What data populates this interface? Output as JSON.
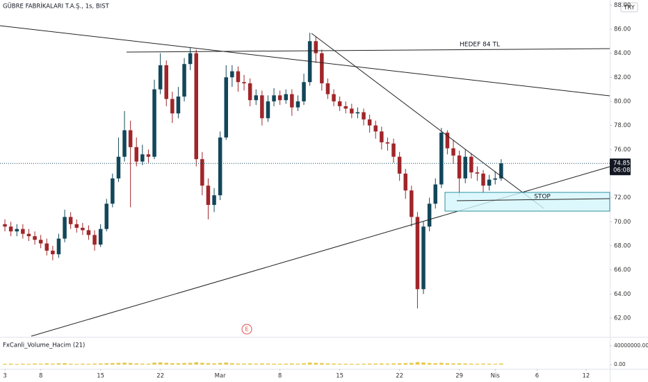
{
  "chart_data": {
    "type": "candlestick",
    "title": "GÜBRE FABRİKALARI T.A.Ş., 1s, BIST",
    "currency_button": "TRY",
    "countdown": "06:08",
    "earnings_marker": "E",
    "annotations": [
      "HEDEF 84 TL",
      "STOP"
    ],
    "up_color": "#12475a",
    "down_color": "#a0262a",
    "grid": false,
    "xlim": [
      -0.41,
      50.58
    ],
    "xticks": [
      {
        "value": 0,
        "label": "3"
      },
      {
        "value": 3,
        "label": "8"
      },
      {
        "value": 8,
        "label": "15"
      },
      {
        "value": 13,
        "label": "22"
      },
      {
        "value": 18,
        "label": "Mar"
      },
      {
        "value": 23,
        "label": "8"
      },
      {
        "value": 28,
        "label": "15"
      },
      {
        "value": 33,
        "label": "22"
      },
      {
        "value": 38,
        "label": "29"
      },
      {
        "value": 41,
        "label": "Nis"
      },
      {
        "value": 44.5,
        "label": "6"
      },
      {
        "value": 48.6,
        "label": "12"
      }
    ],
    "ylim": [
      60.44,
      88.42
    ],
    "yticks": [
      {
        "value": 62,
        "label": "62.00"
      },
      {
        "value": 64,
        "label": "64.00"
      },
      {
        "value": 66,
        "label": "66.00"
      },
      {
        "value": 68,
        "label": "68.00"
      },
      {
        "value": 70,
        "label": "70.00"
      },
      {
        "value": 72,
        "label": "72.00"
      },
      {
        "value": 76,
        "label": "76.00"
      },
      {
        "value": 78,
        "label": "78.00"
      },
      {
        "value": 80,
        "label": "80.00"
      },
      {
        "value": 82,
        "label": "82.00"
      },
      {
        "value": 84,
        "label": "84.00"
      },
      {
        "value": 86,
        "label": "86.00"
      },
      {
        "value": 88,
        "label": "88.00"
      }
    ],
    "x": [
      0,
      0.5,
      1,
      1.5,
      2,
      2.5,
      3,
      3.5,
      4,
      4.5,
      5,
      5.5,
      6,
      6.5,
      7,
      7.5,
      8,
      8.5,
      9,
      9.5,
      10,
      10.5,
      11,
      11.5,
      12,
      12.5,
      13,
      13.5,
      14,
      14.5,
      15,
      15.5,
      16,
      16.5,
      17,
      17.5,
      18,
      18.5,
      19,
      19.5,
      20,
      20.5,
      21,
      21.5,
      22,
      22.5,
      23,
      23.5,
      24,
      24.5,
      25,
      25.5,
      26,
      26.5,
      27,
      27.5,
      28,
      28.5,
      29,
      29.5,
      30,
      30.5,
      31,
      31.5,
      32,
      32.5,
      33,
      33.5,
      34,
      34.5,
      35,
      35.5,
      36,
      36.5,
      37,
      37.5,
      38,
      38.5,
      39,
      39.5,
      40,
      40.5,
      41,
      41.5
    ],
    "open": [
      69.8,
      69.6,
      69.2,
      69.4,
      69.0,
      68.8,
      68.5,
      68.2,
      67.6,
      67.3,
      68.6,
      70.4,
      69.8,
      69.5,
      69.3,
      68.9,
      68.1,
      69.4,
      71.5,
      73.6,
      75.4,
      77.6,
      76.2,
      75.0,
      75.6,
      75.4,
      81.0,
      83.0,
      80.2,
      79.0,
      80.4,
      83.1,
      84.0,
      75.2,
      73.0,
      71.4,
      72.2,
      77.0,
      82.0,
      82.5,
      81.6,
      81.5,
      80.1,
      80.5,
      78.6,
      80.0,
      80.5,
      80.1,
      80.6,
      79.5,
      80.0,
      81.6,
      85.0,
      84.0,
      81.5,
      80.6,
      80.0,
      79.6,
      79.4,
      79.0,
      79.1,
      78.5,
      78.0,
      77.5,
      76.6,
      76.5,
      75.4,
      74.0,
      72.6,
      70.4,
      64.4,
      69.6,
      71.5,
      73.1,
      77.4,
      76.1,
      75.5,
      73.6,
      75.4,
      74.1,
      74.0,
      73.0,
      73.5,
      73.6
    ],
    "high": [
      70.2,
      70.0,
      69.8,
      69.8,
      69.4,
      69.2,
      68.9,
      68.6,
      68.0,
      69.0,
      71.0,
      70.8,
      70.2,
      69.9,
      69.7,
      69.3,
      69.8,
      71.9,
      74.0,
      77.0,
      79.2,
      78.4,
      77.0,
      76.4,
      76.0,
      81.8,
      84.0,
      83.4,
      80.8,
      81.2,
      83.6,
      84.5,
      84.3,
      75.8,
      73.6,
      72.8,
      77.5,
      83.0,
      83.0,
      82.9,
      82.2,
      81.9,
      81.0,
      80.9,
      80.5,
      81.1,
      80.9,
      81.0,
      81.0,
      80.5,
      82.3,
      85.7,
      85.4,
      84.3,
      81.9,
      81.0,
      80.4,
      80.0,
      79.8,
      79.5,
      79.4,
      78.9,
      78.4,
      77.9,
      77.0,
      76.9,
      75.8,
      74.4,
      73.0,
      70.8,
      70.0,
      72.0,
      73.6,
      77.8,
      77.6,
      76.8,
      75.9,
      76.0,
      75.7,
      74.6,
      74.3,
      73.9,
      74.2,
      75.2
    ],
    "low": [
      69.2,
      68.8,
      68.8,
      68.6,
      68.4,
      68.1,
      67.8,
      67.2,
      66.8,
      67.0,
      68.3,
      69.4,
      69.1,
      68.9,
      68.5,
      67.6,
      67.9,
      69.2,
      71.2,
      73.3,
      75.0,
      71.2,
      74.6,
      74.7,
      74.9,
      75.2,
      80.6,
      79.6,
      78.2,
      78.6,
      80.0,
      82.6,
      74.6,
      72.2,
      70.2,
      70.8,
      71.8,
      76.8,
      81.2,
      80.8,
      80.9,
      79.6,
      79.7,
      78.0,
      78.3,
      79.6,
      79.7,
      79.8,
      78.8,
      79.2,
      79.7,
      81.3,
      83.2,
      80.9,
      80.2,
      79.6,
      79.2,
      79.0,
      78.6,
      78.6,
      78.0,
      77.4,
      76.9,
      76.0,
      75.9,
      74.9,
      73.4,
      71.9,
      69.6,
      62.8,
      64.0,
      69.2,
      71.1,
      72.8,
      75.6,
      74.8,
      72.1,
      73.2,
      73.6,
      73.4,
      72.4,
      72.6,
      73.1,
      73.4
    ],
    "close": [
      69.6,
      69.2,
      69.4,
      69.0,
      68.8,
      68.5,
      68.2,
      67.6,
      67.3,
      68.6,
      70.4,
      69.8,
      69.5,
      69.3,
      68.9,
      68.1,
      69.4,
      71.5,
      73.6,
      75.4,
      77.6,
      76.2,
      75.0,
      75.6,
      75.4,
      81.0,
      83.0,
      80.2,
      79.0,
      80.4,
      83.1,
      84.0,
      75.2,
      73.0,
      71.4,
      72.2,
      77.0,
      82.0,
      82.5,
      81.6,
      81.5,
      80.1,
      80.5,
      78.6,
      80.0,
      80.5,
      80.1,
      80.6,
      79.5,
      80.0,
      81.6,
      85.0,
      84.0,
      81.5,
      80.6,
      80.0,
      79.6,
      79.4,
      79.0,
      79.1,
      78.5,
      78.0,
      77.5,
      76.6,
      76.5,
      75.4,
      74.0,
      72.6,
      70.4,
      64.4,
      69.6,
      71.5,
      73.1,
      77.4,
      76.1,
      75.5,
      73.6,
      75.4,
      74.1,
      74.0,
      73.0,
      73.5,
      73.6,
      74.85
    ],
    "volume_indicator": {
      "name": "FxCanli_Volume_Hacim (21)",
      "color": "#e6c84a",
      "ylim": [
        -7400000,
        56300000
      ],
      "yticks": [
        {
          "value": 40000000,
          "label": "40000000.00"
        },
        {
          "value": 0,
          "label": "0.00"
        }
      ],
      "values": [
        1800000,
        2200000,
        1500000,
        2000000,
        1700000,
        2400000,
        1900000,
        2600000,
        2100000,
        2800000,
        3200000,
        1900000,
        1600000,
        2000000,
        1800000,
        2300000,
        2500000,
        3000000,
        3400000,
        3800000,
        4200000,
        3600000,
        2600000,
        2200000,
        2000000,
        4400000,
        4800000,
        3900000,
        3100000,
        2900000,
        3500000,
        3800000,
        5200000,
        3900000,
        3300000,
        2700000,
        3600000,
        4600000,
        3000000,
        2400000,
        2200000,
        2500000,
        2100000,
        2600000,
        2300000,
        2000000,
        1900000,
        2100000,
        2400000,
        2000000,
        2800000,
        4400000,
        3800000,
        3300000,
        2600000,
        2200000,
        2000000,
        1900000,
        1800000,
        1700000,
        2000000,
        2200000,
        2300000,
        2500000,
        2100000,
        2600000,
        2900000,
        3200000,
        3800000,
        5400000,
        4600000,
        3400000,
        2900000,
        3800000,
        3000000,
        2500000,
        2800000,
        2400000,
        2100000,
        1900000,
        2200000,
        2000000,
        1800000,
        2400000
      ]
    }
  }
}
